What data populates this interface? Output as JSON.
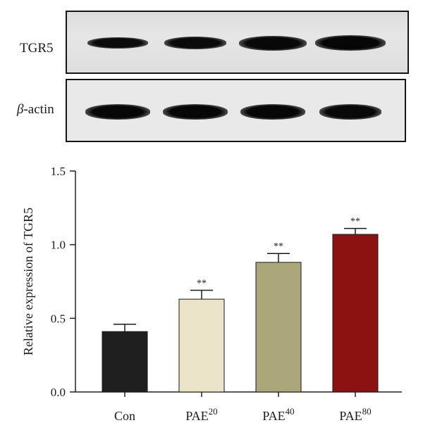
{
  "blot": {
    "lanes": 4,
    "rows": [
      {
        "label": "TGR5",
        "intensity": [
          0.8,
          0.84,
          0.92,
          0.96
        ]
      },
      {
        "label": "-actin",
        "label_symbol": "β",
        "intensity": [
          0.94,
          0.93,
          0.93,
          0.9
        ]
      }
    ]
  },
  "chart_data": {
    "type": "bar",
    "categories": [
      "Con",
      "PAE20",
      "PAE40",
      "PAE80"
    ],
    "category_labels": [
      {
        "base": "Con",
        "sup": ""
      },
      {
        "base": "PAE",
        "sup": "20"
      },
      {
        "base": "PAE",
        "sup": "40"
      },
      {
        "base": "PAE",
        "sup": "80"
      }
    ],
    "values": [
      0.41,
      0.63,
      0.88,
      1.07
    ],
    "errors": [
      0.05,
      0.06,
      0.06,
      0.04
    ],
    "significance": [
      "",
      "**",
      "**",
      "**"
    ],
    "colors": [
      "#1f1f1f",
      "#ebe4c9",
      "#aca77a",
      "#8c1212"
    ],
    "ylabel": "Relative expression of TGR5",
    "xlabel": "",
    "ylim": [
      0,
      1.5
    ],
    "yticks": [
      "0.0",
      "0.5",
      "1.0",
      "1.5"
    ],
    "grid": false
  }
}
